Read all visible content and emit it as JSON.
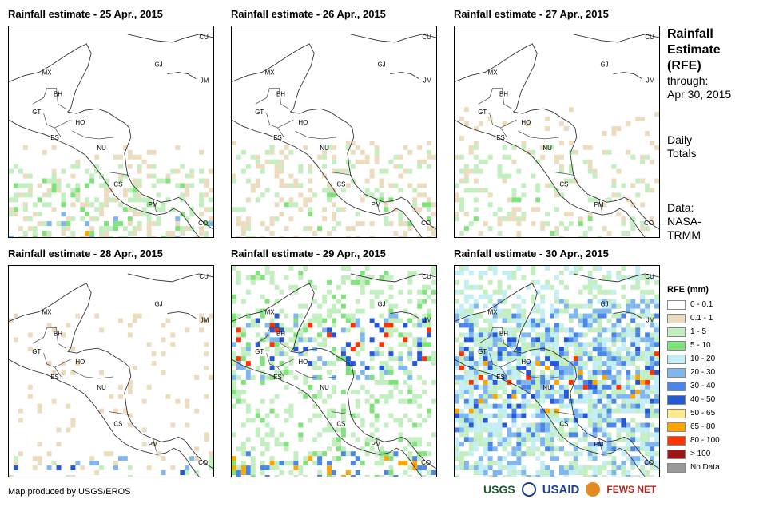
{
  "panels": [
    {
      "title": "Rainfall estimate - 25 Apr., 2015",
      "id": "25",
      "col": 0,
      "row": 0
    },
    {
      "title": "Rainfall estimate - 26 Apr., 2015",
      "id": "26",
      "col": 1,
      "row": 0
    },
    {
      "title": "Rainfall estimate - 27 Apr., 2015",
      "id": "27",
      "col": 2,
      "row": 0
    },
    {
      "title": "Rainfall estimate - 28 Apr., 2015",
      "id": "28",
      "col": 0,
      "row": 1
    },
    {
      "title": "Rainfall estimate - 29 Apr., 2015",
      "id": "29",
      "col": 1,
      "row": 1
    },
    {
      "title": "Rainfall estimate - 30 Apr., 2015",
      "id": "30",
      "col": 2,
      "row": 1
    }
  ],
  "country_labels": [
    "CU",
    "GJ",
    "JM",
    "MX",
    "BH",
    "GT",
    "HO",
    "ES",
    "NU",
    "CS",
    "PM",
    "CO"
  ],
  "sidebar": {
    "title_line1": "Rainfall",
    "title_line2": "Estimate",
    "title_line3": "(RFE)",
    "through": "through:",
    "date": "Apr 30, 2015",
    "daily1": "Daily",
    "daily2": "Totals",
    "data_label": "Data:",
    "data_src1": "NASA-",
    "data_src2": "TRMM"
  },
  "legend": {
    "title": "RFE (mm)",
    "items": [
      {
        "label": "0 - 0.1",
        "color": "#ffffff"
      },
      {
        "label": "0.1 - 1",
        "color": "#ecdcbf"
      },
      {
        "label": "1 - 5",
        "color": "#c2eec0"
      },
      {
        "label": "5 - 10",
        "color": "#7fe27a"
      },
      {
        "label": "10 - 20",
        "color": "#c4eef6"
      },
      {
        "label": "20 - 30",
        "color": "#7fb6ef"
      },
      {
        "label": "30 - 40",
        "color": "#4a86e8"
      },
      {
        "label": "40 - 50",
        "color": "#2458d6"
      },
      {
        "label": "50 - 65",
        "color": "#ffe98a"
      },
      {
        "label": "65 - 80",
        "color": "#ffa500"
      },
      {
        "label": "80 - 100",
        "color": "#ff3300"
      },
      {
        "label": "> 100",
        "color": "#a31515"
      },
      {
        "label": "No Data",
        "color": "#999999"
      }
    ]
  },
  "credit": "Map produced by USGS/EROS",
  "logos": {
    "usgs": "USGS",
    "usaid": "USAID",
    "fews": "FEWS NET"
  }
}
